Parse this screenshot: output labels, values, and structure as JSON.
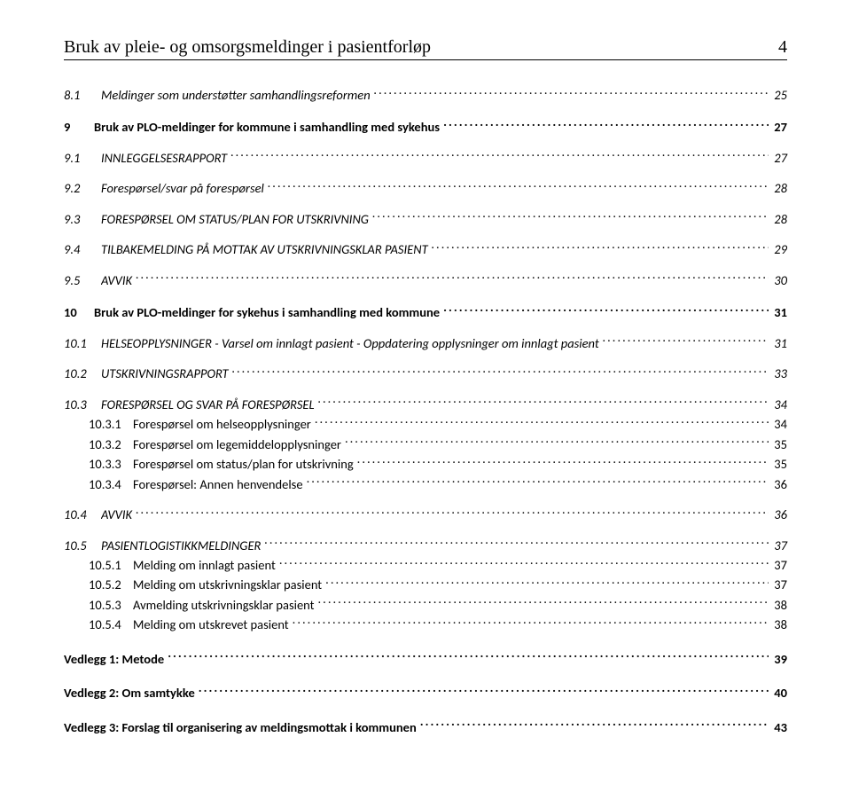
{
  "header": {
    "title": "Bruk av pleie- og omsorgsmeldinger i pasientforløp",
    "page": "4"
  },
  "entries": [
    {
      "level": "lvl2",
      "num": "8.1",
      "text": "Meldinger som understøtter samhandlingsreformen",
      "page": "25"
    },
    {
      "level": "lvl1",
      "num": "9",
      "text": "Bruk av PLO-meldinger for kommune i samhandling med sykehus",
      "page": "27"
    },
    {
      "level": "lvl2",
      "num": "9.1",
      "text": "INNLEGGELSESRAPPORT",
      "page": "27"
    },
    {
      "level": "lvl2",
      "num": "9.2",
      "text": "Forespørsel/svar på forespørsel",
      "page": "28"
    },
    {
      "level": "lvl2",
      "num": "9.3",
      "text": "FORESPØRSEL OM STATUS/PLAN FOR UTSKRIVNING",
      "page": "28"
    },
    {
      "level": "lvl2",
      "num": "9.4",
      "text": "TILBAKEMELDING PÅ MOTTAK AV UTSKRIVNINGSKLAR PASIENT",
      "page": "29"
    },
    {
      "level": "lvl2",
      "num": "9.5",
      "text": "AVVIK",
      "page": "30"
    },
    {
      "level": "lvl1",
      "num": "10",
      "text": "Bruk av PLO-meldinger for sykehus i samhandling med kommune",
      "page": "31"
    },
    {
      "level": "lvl2",
      "num": "10.1",
      "text": "HELSEOPPLYSNINGER  - Varsel om innlagt pasient - Oppdatering opplysninger om innlagt pasient",
      "page": "31"
    },
    {
      "level": "lvl2",
      "num": "10.2",
      "text": "UTSKRIVNINGSRAPPORT",
      "page": "33"
    },
    {
      "level": "lvl2",
      "num": "10.3",
      "text": "FORESPØRSEL OG SVAR PÅ FORESPØRSEL",
      "page": "34"
    },
    {
      "level": "lvl3",
      "num": "10.3.1",
      "text": "Forespørsel om helseopplysninger",
      "page": "34"
    },
    {
      "level": "lvl3",
      "num": "10.3.2",
      "text": "Forespørsel om legemiddelopplysninger",
      "page": "35"
    },
    {
      "level": "lvl3",
      "num": "10.3.3",
      "text": "Forespørsel om status/plan for utskrivning",
      "page": "35"
    },
    {
      "level": "lvl3",
      "num": "10.3.4",
      "text": "Forespørsel: Annen henvendelse",
      "page": "36"
    },
    {
      "level": "lvl2",
      "num": "10.4",
      "text": "AVVIK",
      "page": "36"
    },
    {
      "level": "lvl2",
      "num": "10.5",
      "text": "PASIENTLOGISTIKKMELDINGER",
      "page": "37"
    },
    {
      "level": "lvl3",
      "num": "10.5.1",
      "text": "Melding om innlagt pasient",
      "page": "37"
    },
    {
      "level": "lvl3",
      "num": "10.5.2",
      "text": "Melding om utskrivningsklar pasient",
      "page": "37"
    },
    {
      "level": "lvl3",
      "num": "10.5.3",
      "text": "Avmelding utskrivningsklar pasient",
      "page": "38"
    },
    {
      "level": "lvl3",
      "num": "10.5.4",
      "text": "Melding om utskrevet pasient",
      "page": "38"
    },
    {
      "level": "vedlegg",
      "num": "",
      "text": "Vedlegg 1: Metode",
      "page": "39"
    },
    {
      "level": "vedlegg",
      "num": "",
      "text": "Vedlegg 2: Om samtykke",
      "page": "40"
    },
    {
      "level": "vedlegg",
      "num": "",
      "text": "Vedlegg 3: Forslag til organisering av meldingsmottak i kommunen",
      "page": "43"
    }
  ]
}
